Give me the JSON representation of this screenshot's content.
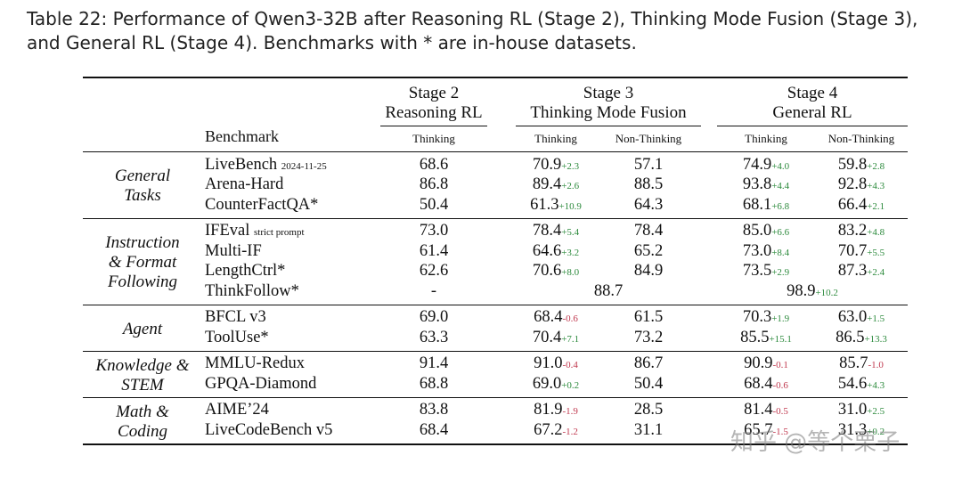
{
  "caption": "Table 22: Performance of Qwen3-32B after Reasoning RL (Stage 2), Thinking Mode Fusion (Stage 3), and General RL (Stage 4). Benchmarks with * are in-house datasets.",
  "header": {
    "benchmark": "Benchmark",
    "stage2_line1": "Stage 2",
    "stage2_line2": "Reasoning RL",
    "stage3_line1": "Stage 3",
    "stage3_line2": "Thinking Mode Fusion",
    "stage4_line1": "Stage 4",
    "stage4_line2": "General RL",
    "thinking": "Thinking",
    "non_thinking": "Non-Thinking"
  },
  "groups": [
    {
      "name_lines": [
        "General",
        "Tasks"
      ],
      "rows": [
        {
          "benchmark": "LiveBench",
          "suffix": "2024-11-25",
          "s2": "68.6",
          "s3t": "70.9",
          "s3t_d": "+2.3",
          "s3n": "57.1",
          "s3n_d": "",
          "s4t": "74.9",
          "s4t_d": "+4.0",
          "s4n": "59.8",
          "s4n_d": "+2.8"
        },
        {
          "benchmark": "Arena-Hard",
          "suffix": "",
          "s2": "86.8",
          "s3t": "89.4",
          "s3t_d": "+2.6",
          "s3n": "88.5",
          "s3n_d": "",
          "s4t": "93.8",
          "s4t_d": "+4.4",
          "s4n": "92.8",
          "s4n_d": "+4.3"
        },
        {
          "benchmark": "CounterFactQA*",
          "suffix": "",
          "s2": "50.4",
          "s3t": "61.3",
          "s3t_d": "+10.9",
          "s3n": "64.3",
          "s3n_d": "",
          "s4t": "68.1",
          "s4t_d": "+6.8",
          "s4n": "66.4",
          "s4n_d": "+2.1"
        }
      ]
    },
    {
      "name_lines": [
        "Instruction",
        "& Format",
        "Following"
      ],
      "rows": [
        {
          "benchmark": "IFEval",
          "suffix": "strict prompt",
          "s2": "73.0",
          "s3t": "78.4",
          "s3t_d": "+5.4",
          "s3n": "78.4",
          "s3n_d": "",
          "s4t": "85.0",
          "s4t_d": "+6.6",
          "s4n": "83.2",
          "s4n_d": "+4.8"
        },
        {
          "benchmark": "Multi-IF",
          "suffix": "",
          "s2": "61.4",
          "s3t": "64.6",
          "s3t_d": "+3.2",
          "s3n": "65.2",
          "s3n_d": "",
          "s4t": "73.0",
          "s4t_d": "+8.4",
          "s4n": "70.7",
          "s4n_d": "+5.5"
        },
        {
          "benchmark": "LengthCtrl*",
          "suffix": "",
          "s2": "62.6",
          "s3t": "70.6",
          "s3t_d": "+8.0",
          "s3n": "84.9",
          "s3n_d": "",
          "s4t": "73.5",
          "s4t_d": "+2.9",
          "s4n": "87.3",
          "s4n_d": "+2.4"
        },
        {
          "benchmark": "ThinkFollow*",
          "suffix": "",
          "s2": "-",
          "merged3": "88.7",
          "merged4": "98.9",
          "merged4_d": "+10.2"
        }
      ]
    },
    {
      "name_lines": [
        "Agent"
      ],
      "rows": [
        {
          "benchmark": "BFCL v3",
          "suffix": "",
          "s2": "69.0",
          "s3t": "68.4",
          "s3t_d": "-0.6",
          "s3n": "61.5",
          "s3n_d": "",
          "s4t": "70.3",
          "s4t_d": "+1.9",
          "s4n": "63.0",
          "s4n_d": "+1.5"
        },
        {
          "benchmark": "ToolUse*",
          "suffix": "",
          "s2": "63.3",
          "s3t": "70.4",
          "s3t_d": "+7.1",
          "s3n": "73.2",
          "s3n_d": "",
          "s4t": "85.5",
          "s4t_d": "+15.1",
          "s4n": "86.5",
          "s4n_d": "+13.3"
        }
      ]
    },
    {
      "name_lines": [
        "Knowledge &",
        "STEM"
      ],
      "rows": [
        {
          "benchmark": "MMLU-Redux",
          "suffix": "",
          "s2": "91.4",
          "s3t": "91.0",
          "s3t_d": "-0.4",
          "s3n": "86.7",
          "s3n_d": "",
          "s4t": "90.9",
          "s4t_d": "-0.1",
          "s4n": "85.7",
          "s4n_d": "-1.0"
        },
        {
          "benchmark": "GPQA-Diamond",
          "suffix": "",
          "s2": "68.8",
          "s3t": "69.0",
          "s3t_d": "+0.2",
          "s3n": "50.4",
          "s3n_d": "",
          "s4t": "68.4",
          "s4t_d": "-0.6",
          "s4n": "54.6",
          "s4n_d": "+4.3"
        }
      ]
    },
    {
      "name_lines": [
        "Math &",
        "Coding"
      ],
      "rows": [
        {
          "benchmark": "AIME’24",
          "suffix": "",
          "s2": "83.8",
          "s3t": "81.9",
          "s3t_d": "-1.9",
          "s3n": "28.5",
          "s3n_d": "",
          "s4t": "81.4",
          "s4t_d": "-0.5",
          "s4n": "31.0",
          "s4n_d": "+2.5"
        },
        {
          "benchmark": "LiveCodeBench v5",
          "suffix": "",
          "s2": "68.4",
          "s3t": "67.2",
          "s3t_d": "-1.2",
          "s3n": "31.1",
          "s3n_d": "",
          "s4t": "65.7",
          "s4t_d": "-1.5",
          "s4n": "31.3",
          "s4n_d": "+0.2"
        }
      ]
    }
  ],
  "watermark": "知乎 @等个栗子",
  "colors": {
    "positive": "#2e8b3e",
    "negative": "#c0394f"
  }
}
